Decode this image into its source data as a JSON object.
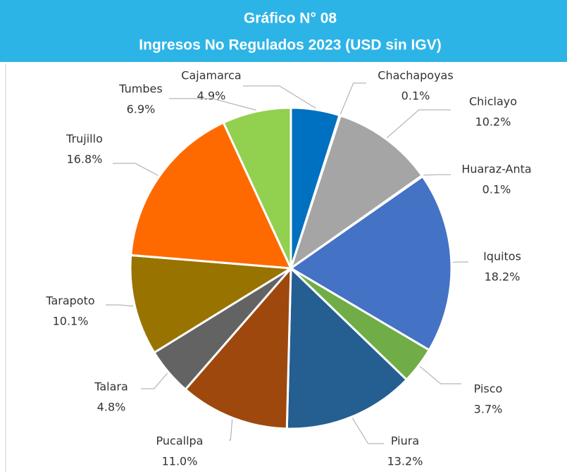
{
  "chart_data": {
    "type": "pie",
    "title": "Gráfico N° 08",
    "subtitle": "Ingresos No Regulados 2023 (USD sin IGV)",
    "categories": [
      "Cajamarca",
      "Chachapoyas",
      "Chiclayo",
      "Huaraz-Anta",
      "Iquitos",
      "Pisco",
      "Piura",
      "Pucallpa",
      "Talara",
      "Tarapoto",
      "Trujillo",
      "Tumbes"
    ],
    "values": [
      4.9,
      0.1,
      10.2,
      0.1,
      18.2,
      3.7,
      13.2,
      11.0,
      4.8,
      10.1,
      16.8,
      6.9
    ],
    "value_labels": [
      "4.9%",
      "0.1%",
      "10.2%",
      "0.1%",
      "18.2%",
      "3.7%",
      "13.2%",
      "11.0%",
      "4.8%",
      "10.1%",
      "16.8%",
      "6.9%"
    ],
    "colors": [
      "#0070c0",
      "#7f7f7f",
      "#a5a5a5",
      "#ffc000",
      "#4472c4",
      "#70ad47",
      "#255e91",
      "#9e480e",
      "#636363",
      "#997300",
      "#ff6a00",
      "#92d050"
    ]
  }
}
